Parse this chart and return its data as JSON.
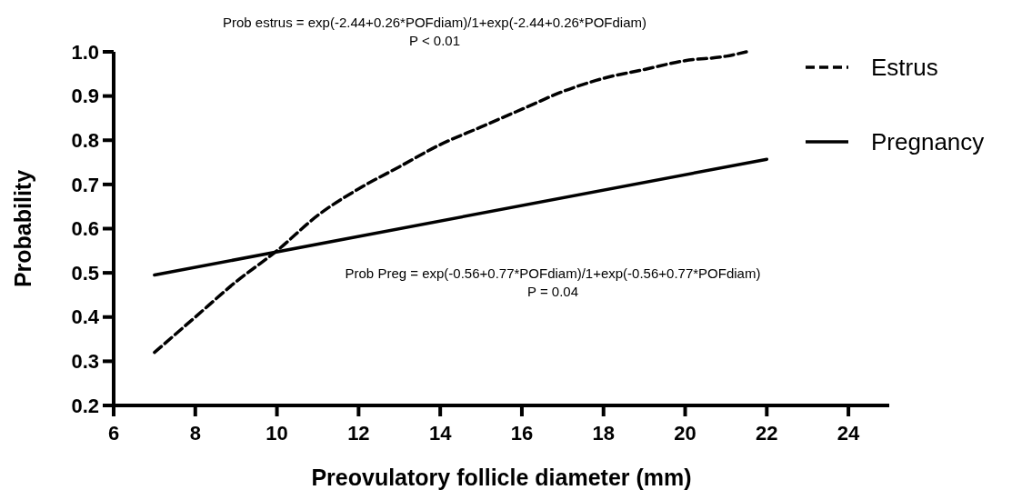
{
  "chart_data": {
    "type": "line",
    "xlabel": "Preovulatory follicle diameter (mm)",
    "ylabel": "Probability",
    "xlim": [
      6,
      25
    ],
    "xticks": [
      6,
      8,
      10,
      12,
      14,
      16,
      18,
      20,
      22,
      24
    ],
    "ylim": [
      0.2,
      1.0
    ],
    "yticks": [
      {
        "value": 0.2,
        "label": "0.2"
      },
      {
        "value": 0.3,
        "label": "0.3"
      },
      {
        "value": 0.4,
        "label": "0.4"
      },
      {
        "value": 0.5,
        "label": "0.5"
      },
      {
        "value": 0.6,
        "label": "0.6"
      },
      {
        "value": 0.7,
        "label": "0.7"
      },
      {
        "value": 0.8,
        "label": "0.8"
      },
      {
        "value": 0.9,
        "label": "0.9"
      },
      {
        "value": 1.0,
        "label": "1.0"
      }
    ],
    "grid": false,
    "legend": "top right",
    "series": [
      {
        "name": "Estrus",
        "color": "#000000",
        "line_style": "dashed",
        "x": [
          7,
          8,
          9,
          10,
          11,
          12,
          13,
          14,
          15,
          16,
          17,
          18,
          19,
          20,
          21,
          21.5
        ],
        "values": [
          0.32,
          0.4,
          0.48,
          0.55,
          0.63,
          0.69,
          0.74,
          0.79,
          0.83,
          0.87,
          0.91,
          0.94,
          0.96,
          0.98,
          0.99,
          1.0
        ]
      },
      {
        "name": "Pregnancy",
        "color": "#000000",
        "line_style": "solid",
        "x": [
          7,
          22
        ],
        "values": [
          0.495,
          0.757
        ]
      }
    ],
    "annotations": [
      "Prob estrus = exp(-2.44+0.26*POFdiam)/1+exp(-2.44+0.26*POFdiam)\nP < 0.01",
      "Prob Preg = exp(-0.56+0.77*POFdiam)/1+exp(-0.56+0.77*POFdiam)\nP = 0.04"
    ]
  }
}
